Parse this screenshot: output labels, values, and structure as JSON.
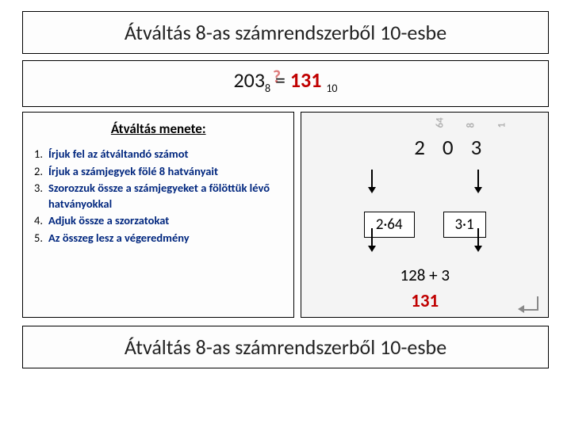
{
  "title": "Átváltás 8-as számrendszerből 10-esbe",
  "footer": "Átváltás 8-as számrendszerből 10-esbe",
  "equation": {
    "lhs_num": "203",
    "lhs_base": "8",
    "equals": "=",
    "rhs_num": "131",
    "rhs_base": "10",
    "qmark": "?"
  },
  "steps_title": "Átváltás menete:",
  "steps": [
    "Írjuk fel az átváltandó számot",
    "Írjuk a számjegyek fölé 8 hatványait",
    "Szorozzuk össze a számjegyeket a fölöttük lévő hatványokkal",
    "Adjuk össze a szorzatokat",
    "Az összeg lesz a végeredmény"
  ],
  "diagram": {
    "powers": [
      "64",
      "8",
      "1"
    ],
    "digits": "203",
    "mult_left": "2·64",
    "mult_right": "3·1",
    "sum_text": "128   +   3",
    "final": "131"
  },
  "colors": {
    "accent_red": "#c00000",
    "step_blue": "#00267e",
    "box_bg": "#f4f4f4"
  }
}
